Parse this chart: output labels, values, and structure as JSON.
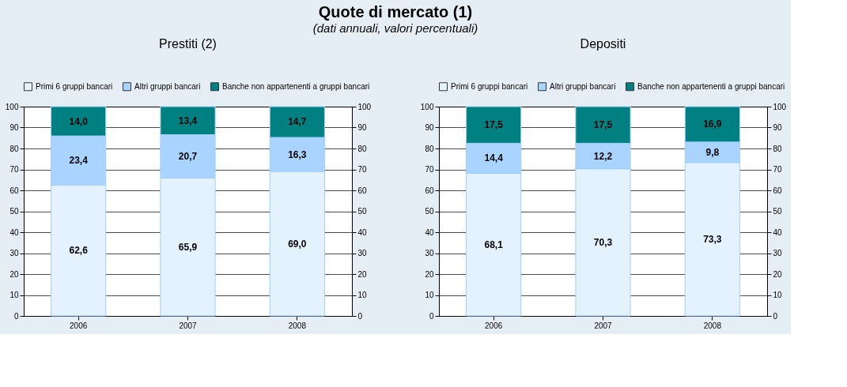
{
  "chart_data": [
    {
      "type": "bar",
      "title": "Prestiti (2)",
      "annotations": [
        "Quote di mercato (1)",
        "(dati annuali, valori percentuali)"
      ],
      "categories": [
        "2006",
        "2007",
        "2008"
      ],
      "stacked": true,
      "legend": "top",
      "grid": "y",
      "ylim": [
        0,
        100
      ],
      "yticks": [
        0,
        10,
        20,
        30,
        40,
        50,
        60,
        70,
        80,
        90,
        100
      ],
      "y2lim": [
        0,
        100
      ],
      "y2ticks": [
        0,
        10,
        20,
        30,
        40,
        50,
        60,
        70,
        80,
        90,
        100
      ],
      "series": [
        {
          "name": "Primi 6 gruppi bancari",
          "color": "#e4f1ff",
          "values": [
            62.6,
            65.9,
            69.0
          ],
          "value_labels": [
            "62,6",
            "65,9",
            "69,0"
          ]
        },
        {
          "name": "Altri gruppi bancari",
          "color": "#a8d4ff",
          "values": [
            23.4,
            20.7,
            16.3
          ],
          "value_labels": [
            "23,4",
            "20,7",
            "16,3"
          ]
        },
        {
          "name": "Banche non appartenenti a gruppi bancari",
          "color": "#008080",
          "values": [
            14.0,
            13.4,
            14.7
          ],
          "value_labels": [
            "14,0",
            "13,4",
            "14,7"
          ]
        }
      ]
    },
    {
      "type": "bar",
      "title": "Depositi",
      "categories": [
        "2006",
        "2007",
        "2008"
      ],
      "stacked": true,
      "legend": "top",
      "grid": "y",
      "ylim": [
        0,
        100
      ],
      "yticks": [
        0,
        10,
        20,
        30,
        40,
        50,
        60,
        70,
        80,
        90,
        100
      ],
      "y2lim": [
        0,
        100
      ],
      "y2ticks": [
        0,
        10,
        20,
        30,
        40,
        50,
        60,
        70,
        80,
        90,
        100
      ],
      "series": [
        {
          "name": "Primi 6 gruppi bancari",
          "color": "#e4f1ff",
          "values": [
            68.1,
            70.3,
            73.3
          ],
          "value_labels": [
            "68,1",
            "70,3",
            "73,3"
          ]
        },
        {
          "name": "Altri gruppi bancari",
          "color": "#a8d4ff",
          "values": [
            14.4,
            12.2,
            9.8
          ],
          "value_labels": [
            "14,4",
            "12,2",
            "9,8"
          ]
        },
        {
          "name": "Banche non appartenenti a gruppi bancari",
          "color": "#008080",
          "values": [
            17.5,
            17.5,
            16.9
          ],
          "value_labels": [
            "17,5",
            "17,5",
            "16,9"
          ]
        }
      ]
    }
  ]
}
